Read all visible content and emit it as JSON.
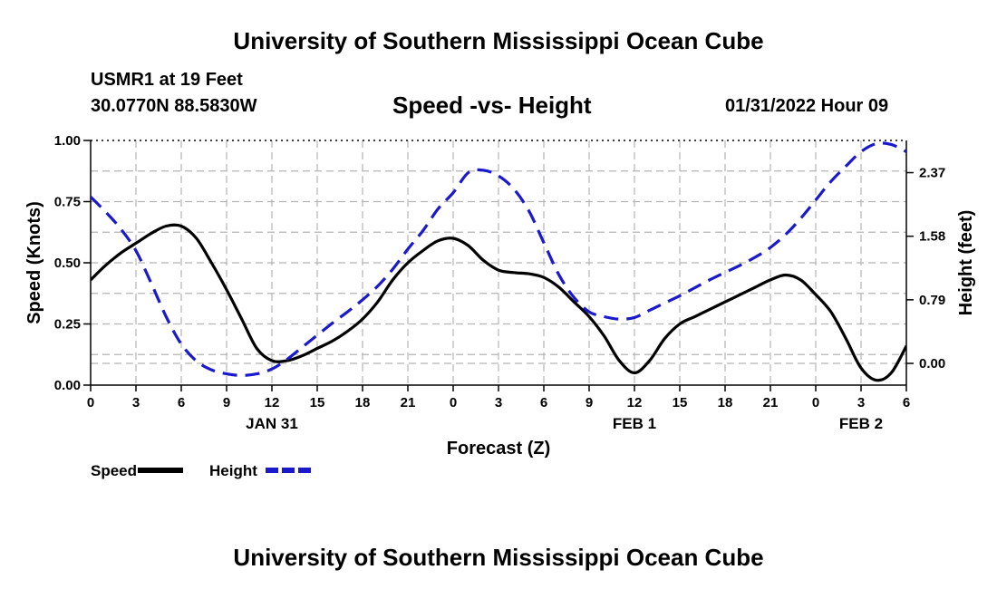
{
  "page": {
    "title": "University of Southern Mississippi Ocean Cube",
    "bottom_title": "University of Southern Mississippi Ocean Cube",
    "station": "USMR1 at 19 Feet",
    "coords": "30.0770N  88.5830W",
    "datetime": "01/31/2022 Hour 09"
  },
  "chart_data": {
    "type": "line",
    "title": "Speed -vs- Height",
    "xlabel": "Forecast (Z)",
    "ylabel": "Speed (Knots)",
    "y2label": "Height (feet)",
    "x_range": [
      0,
      54
    ],
    "ylim": [
      0,
      1.0
    ],
    "y2lim": [
      -0.27,
      2.77
    ],
    "x_ticks": [
      {
        "x": 0,
        "label": "0"
      },
      {
        "x": 3,
        "label": "3"
      },
      {
        "x": 6,
        "label": "6"
      },
      {
        "x": 9,
        "label": "9"
      },
      {
        "x": 12,
        "label": "12"
      },
      {
        "x": 15,
        "label": "15"
      },
      {
        "x": 18,
        "label": "18"
      },
      {
        "x": 21,
        "label": "21"
      },
      {
        "x": 24,
        "label": "0"
      },
      {
        "x": 27,
        "label": "3"
      },
      {
        "x": 30,
        "label": "6"
      },
      {
        "x": 33,
        "label": "9"
      },
      {
        "x": 36,
        "label": "12"
      },
      {
        "x": 39,
        "label": "15"
      },
      {
        "x": 42,
        "label": "18"
      },
      {
        "x": 45,
        "label": "21"
      },
      {
        "x": 48,
        "label": "0"
      },
      {
        "x": 51,
        "label": "3"
      },
      {
        "x": 54,
        "label": "6"
      }
    ],
    "date_labels": [
      {
        "x": 12,
        "label": "JAN 31"
      },
      {
        "x": 36,
        "label": "FEB 1"
      },
      {
        "x": 51,
        "label": "FEB 2"
      }
    ],
    "y_ticks": [
      {
        "v": 0.0,
        "label": "0.00"
      },
      {
        "v": 0.25,
        "label": "0.25"
      },
      {
        "v": 0.5,
        "label": "0.50"
      },
      {
        "v": 0.75,
        "label": "0.75"
      },
      {
        "v": 1.0,
        "label": "1.00"
      }
    ],
    "y2_ticks": [
      {
        "v": 0.0,
        "label": "0.00"
      },
      {
        "v": 0.79,
        "label": "0.79"
      },
      {
        "v": 1.58,
        "label": "1.58"
      },
      {
        "v": 2.37,
        "label": "2.37"
      }
    ],
    "series": [
      {
        "name": "Speed",
        "axis": "left",
        "color": "#000000",
        "dash": "solid",
        "x": [
          0,
          1,
          2,
          3,
          4,
          5,
          6,
          7,
          8,
          9,
          10,
          11,
          12,
          13,
          14,
          15,
          16,
          17,
          18,
          19,
          20,
          21,
          22,
          23,
          24,
          25,
          26,
          27,
          28,
          29,
          30,
          31,
          32,
          33,
          34,
          35,
          36,
          37,
          38,
          39,
          40,
          41,
          42,
          43,
          44,
          45,
          46,
          47,
          48,
          49,
          50,
          51,
          52,
          53,
          54
        ],
        "values": [
          0.43,
          0.49,
          0.54,
          0.58,
          0.62,
          0.65,
          0.65,
          0.6,
          0.5,
          0.39,
          0.27,
          0.15,
          0.1,
          0.1,
          0.12,
          0.15,
          0.18,
          0.22,
          0.27,
          0.34,
          0.43,
          0.5,
          0.55,
          0.59,
          0.6,
          0.57,
          0.51,
          0.47,
          0.46,
          0.455,
          0.44,
          0.4,
          0.34,
          0.28,
          0.2,
          0.1,
          0.05,
          0.1,
          0.19,
          0.25,
          0.28,
          0.31,
          0.34,
          0.37,
          0.4,
          0.43,
          0.45,
          0.43,
          0.37,
          0.3,
          0.19,
          0.07,
          0.02,
          0.05,
          0.16
        ]
      },
      {
        "name": "Height",
        "axis": "right",
        "color": "#1a1acc",
        "dash": "dashed",
        "x": [
          0,
          1,
          2,
          3,
          4,
          5,
          6,
          7,
          8,
          9,
          10,
          11,
          12,
          13,
          14,
          15,
          16,
          17,
          18,
          19,
          20,
          21,
          22,
          23,
          24,
          25,
          26,
          27,
          28,
          29,
          30,
          31,
          32,
          33,
          34,
          35,
          36,
          37,
          38,
          39,
          40,
          41,
          42,
          43,
          44,
          45,
          46,
          47,
          48,
          49,
          50,
          51,
          52,
          53,
          54
        ],
        "values": [
          2.07,
          1.88,
          1.67,
          1.4,
          1.0,
          0.58,
          0.24,
          0.03,
          -0.08,
          -0.13,
          -0.15,
          -0.13,
          -0.07,
          0.05,
          0.2,
          0.35,
          0.5,
          0.64,
          0.79,
          0.96,
          1.17,
          1.42,
          1.65,
          1.92,
          2.12,
          2.37,
          2.4,
          2.33,
          2.17,
          1.9,
          1.5,
          1.1,
          0.82,
          0.64,
          0.58,
          0.55,
          0.57,
          0.66,
          0.75,
          0.84,
          0.94,
          1.04,
          1.13,
          1.22,
          1.32,
          1.44,
          1.6,
          1.8,
          2.03,
          2.26,
          2.45,
          2.63,
          2.73,
          2.72,
          2.63
        ]
      }
    ],
    "legend": [
      {
        "label": "Speed",
        "color": "#000000",
        "dash": "solid"
      },
      {
        "label": "Height",
        "color": "#1a1acc",
        "dash": "dashed"
      }
    ],
    "grid": true,
    "legend_position": "bottom-left"
  }
}
